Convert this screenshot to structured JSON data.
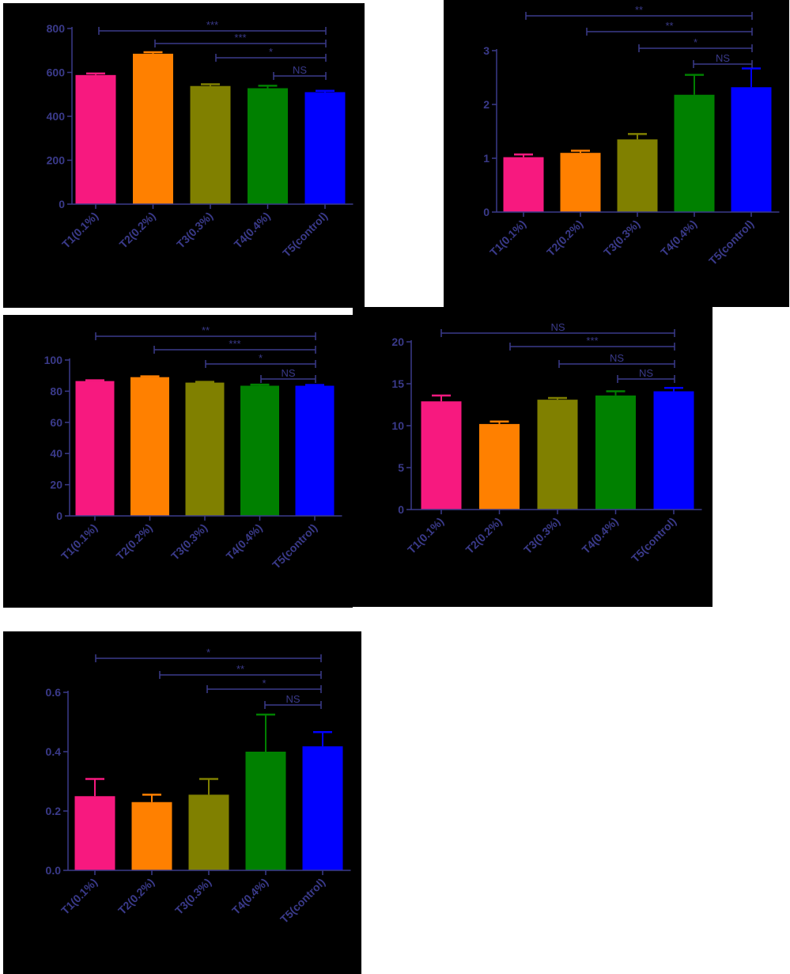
{
  "chart_data": [
    {
      "type": "bar",
      "categories": [
        "T1(0.1%)",
        "T2(0.2%)",
        "T3(0.3%)",
        "T4(0.4%)",
        "T5(control)"
      ],
      "values": [
        588,
        685,
        538,
        528,
        510
      ],
      "error_upper": [
        595,
        692,
        546,
        539,
        516
      ],
      "ylim": [
        0,
        800
      ],
      "yticks": [
        0,
        200,
        400,
        600,
        800
      ],
      "colors": [
        "#f7197f",
        "#ff8000",
        "#808000",
        "#008000",
        "#0000ff"
      ],
      "comparisons": [
        {
          "from": 0,
          "to": 4,
          "label": "***"
        },
        {
          "from": 1,
          "to": 4,
          "label": "***"
        },
        {
          "from": 2,
          "to": 4,
          "label": "*"
        },
        {
          "from": 3,
          "to": 4,
          "label": "NS"
        }
      ]
    },
    {
      "type": "bar",
      "categories": [
        "T1(0.1%)",
        "T2(0.2%)",
        "T3(0.3%)",
        "T4(0.4%)",
        "T5(control)"
      ],
      "values": [
        1.02,
        1.1,
        1.35,
        2.18,
        2.32
      ],
      "error_upper": [
        1.07,
        1.14,
        1.45,
        2.55,
        2.67
      ],
      "ylim": [
        0,
        3
      ],
      "yticks": [
        0,
        1,
        2,
        3
      ],
      "colors": [
        "#f7197f",
        "#ff8000",
        "#808000",
        "#008000",
        "#0000ff"
      ],
      "comparisons": [
        {
          "from": 0,
          "to": 4,
          "label": "**"
        },
        {
          "from": 1,
          "to": 4,
          "label": "**"
        },
        {
          "from": 2,
          "to": 4,
          "label": "*"
        },
        {
          "from": 3,
          "to": 4,
          "label": "NS"
        }
      ]
    },
    {
      "type": "bar",
      "categories": [
        "T1(0.1%)",
        "T2(0.2%)",
        "T3(0.3%)",
        "T4(0.4%)",
        "T5(control)"
      ],
      "values": [
        86.5,
        89,
        85.5,
        83.5,
        83.5
      ],
      "error_upper": [
        87,
        89.5,
        86,
        84.2,
        84
      ],
      "ylim": [
        0,
        100
      ],
      "yticks": [
        0,
        20,
        40,
        60,
        80,
        100
      ],
      "colors": [
        "#f7197f",
        "#ff8000",
        "#808000",
        "#008000",
        "#0000ff"
      ],
      "comparisons": [
        {
          "from": 0,
          "to": 4,
          "label": "**"
        },
        {
          "from": 1,
          "to": 4,
          "label": "***"
        },
        {
          "from": 2,
          "to": 4,
          "label": "*"
        },
        {
          "from": 3,
          "to": 4,
          "label": "NS"
        }
      ]
    },
    {
      "type": "bar",
      "categories": [
        "T1(0.1%)",
        "T2(0.2%)",
        "T3(0.3%)",
        "T4(0.4%)",
        "T5(control)"
      ],
      "values": [
        12.9,
        10.2,
        13.1,
        13.6,
        14.1
      ],
      "error_upper": [
        13.6,
        10.5,
        13.3,
        14.1,
        14.5
      ],
      "ylim": [
        0,
        20
      ],
      "yticks": [
        0,
        5,
        10,
        15,
        20
      ],
      "colors": [
        "#f7197f",
        "#ff8000",
        "#808000",
        "#008000",
        "#0000ff"
      ],
      "comparisons": [
        {
          "from": 0,
          "to": 4,
          "label": "NS"
        },
        {
          "from": 1,
          "to": 4,
          "label": "***"
        },
        {
          "from": 2,
          "to": 4,
          "label": "NS"
        },
        {
          "from": 3,
          "to": 4,
          "label": "NS"
        }
      ]
    },
    {
      "type": "bar",
      "categories": [
        "T1(0.1%)",
        "T2(0.2%)",
        "T3(0.3%)",
        "T4(0.4%)",
        "T5(control)"
      ],
      "values": [
        0.25,
        0.23,
        0.255,
        0.4,
        0.418
      ],
      "error_upper": [
        0.308,
        0.255,
        0.308,
        0.525,
        0.466
      ],
      "ylim": [
        0,
        0.6
      ],
      "yticks": [
        "0.0",
        "0.2",
        "0.4",
        "0.6"
      ],
      "colors": [
        "#f7197f",
        "#ff8000",
        "#808000",
        "#008000",
        "#0000ff"
      ],
      "comparisons": [
        {
          "from": 0,
          "to": 4,
          "label": "*"
        },
        {
          "from": 1,
          "to": 4,
          "label": "**"
        },
        {
          "from": 2,
          "to": 4,
          "label": "*"
        },
        {
          "from": 3,
          "to": 4,
          "label": "NS"
        }
      ]
    }
  ]
}
